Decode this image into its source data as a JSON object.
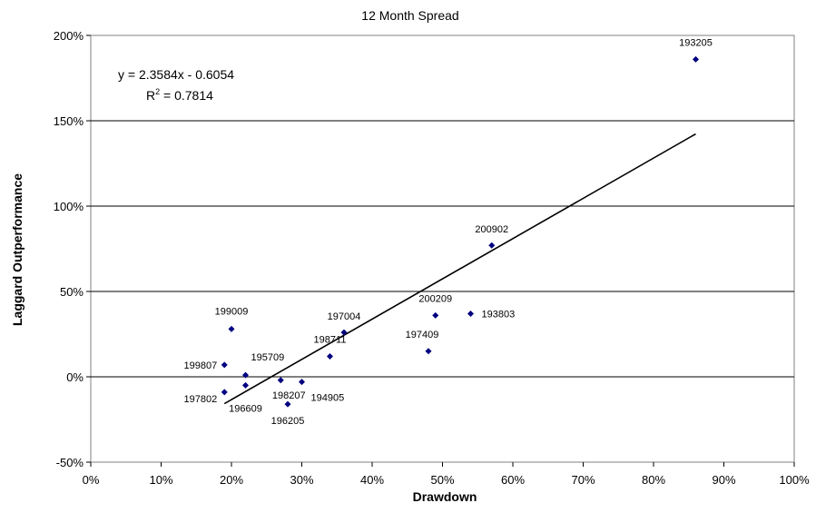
{
  "chart_data": {
    "type": "scatter",
    "title": "12 Month Spread",
    "xlabel": "Drawdown",
    "ylabel": "Laggard Outperformance",
    "xlim": [
      0,
      100
    ],
    "ylim": [
      -50,
      200
    ],
    "x_ticks": [
      0,
      10,
      20,
      30,
      40,
      50,
      60,
      70,
      80,
      90,
      100
    ],
    "y_ticks": [
      -50,
      0,
      50,
      100,
      150,
      200
    ],
    "x_tick_labels": [
      "0%",
      "10%",
      "20%",
      "30%",
      "40%",
      "50%",
      "60%",
      "70%",
      "80%",
      "90%",
      "100%"
    ],
    "y_tick_labels": [
      "-50%",
      "0%",
      "50%",
      "100%",
      "150%",
      "200%"
    ],
    "grid": "horizontal",
    "points": [
      {
        "label": "193205",
        "x": 86,
        "y": 186
      },
      {
        "label": "200902",
        "x": 57,
        "y": 77
      },
      {
        "label": "200209",
        "x": 49,
        "y": 36
      },
      {
        "label": "193803",
        "x": 54,
        "y": 37
      },
      {
        "label": "197409",
        "x": 48,
        "y": 15
      },
      {
        "label": "197004",
        "x": 36,
        "y": 26
      },
      {
        "label": "198711",
        "x": 34,
        "y": 12
      },
      {
        "label": "199009",
        "x": 20,
        "y": 28
      },
      {
        "label": "199807",
        "x": 19,
        "y": 7
      },
      {
        "label": "195709",
        "x": 22,
        "y": 1
      },
      {
        "label": "197802",
        "x": 19,
        "y": -9
      },
      {
        "label": "196609",
        "x": 22,
        "y": -5
      },
      {
        "label": "198207",
        "x": 27,
        "y": -2
      },
      {
        "label": "194905",
        "x": 30,
        "y": -3
      },
      {
        "label": "196205",
        "x": 28,
        "y": -16
      }
    ],
    "trendline": {
      "slope": 2.3584,
      "intercept": -0.6054,
      "x_range": [
        19,
        86
      ],
      "equation": "y = 2.3584x - 0.6054",
      "r2_label": "R",
      "r2_sup": "2",
      "r2_value": " = 0.7814"
    }
  }
}
